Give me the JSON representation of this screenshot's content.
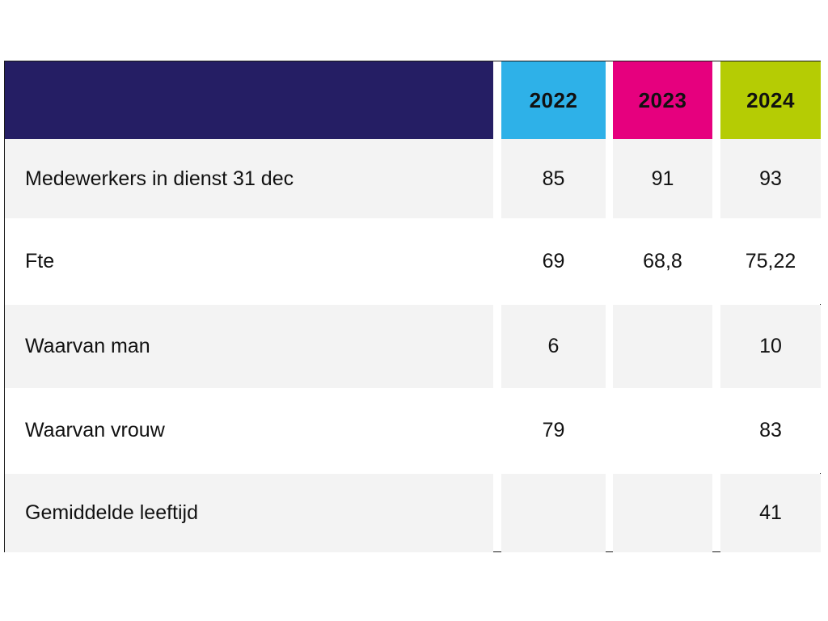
{
  "colors": {
    "header_label_bg": "#251e64",
    "year_2022_bg": "#2eb1e8",
    "year_2023_bg": "#e6007e",
    "year_2024_bg": "#b5cc04",
    "row_shaded_bg": "#f3f3f3"
  },
  "table": {
    "header": {
      "label": "",
      "years": [
        "2022",
        "2023",
        "2024"
      ]
    },
    "rows": [
      {
        "label": "Medewerkers in dienst 31 dec",
        "values": [
          "85",
          "91",
          "93"
        ]
      },
      {
        "label": "Fte",
        "values": [
          "69",
          "68,8",
          "75,22"
        ]
      },
      {
        "label": "Waarvan man",
        "values": [
          "6",
          "",
          "10"
        ]
      },
      {
        "label": "Waarvan vrouw",
        "values": [
          "79",
          "",
          "83"
        ]
      },
      {
        "label": "Gemiddelde leeftijd",
        "values": [
          "",
          "",
          "41"
        ]
      }
    ]
  }
}
